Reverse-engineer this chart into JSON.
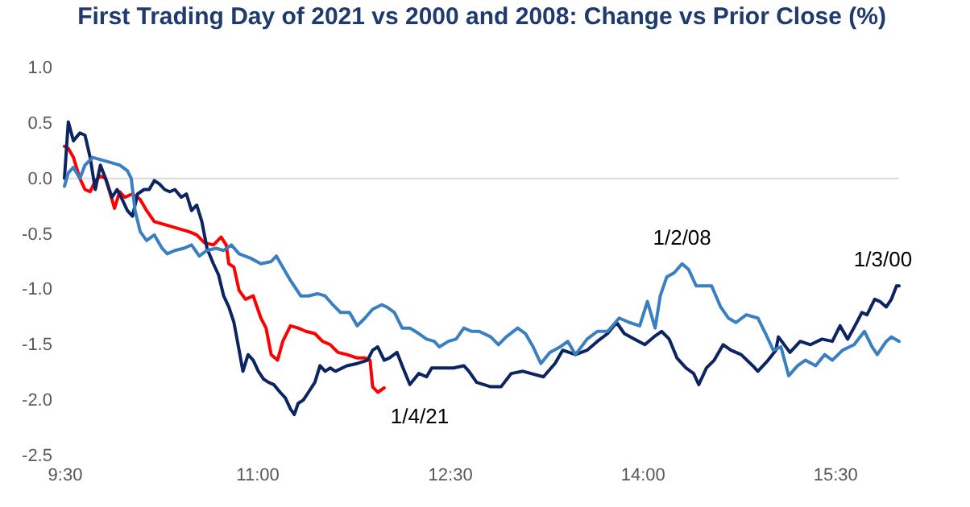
{
  "chart_data": {
    "type": "line",
    "title": "First Trading Day of 2021 vs 2000 and 2008: Change vs Prior Close (%)",
    "xlim": [
      9.5,
      16
    ],
    "xticks": [
      {
        "value": 9.5,
        "label": "9:30"
      },
      {
        "value": 11,
        "label": "11:00"
      },
      {
        "value": 12.5,
        "label": "12:30"
      },
      {
        "value": 14,
        "label": "14:00"
      },
      {
        "value": 15.5,
        "label": "15:30"
      }
    ],
    "ylim": [
      -2.5,
      1.0
    ],
    "yticks": [
      {
        "value": 1,
        "label": "1.0"
      },
      {
        "value": 0.5,
        "label": "0.5"
      },
      {
        "value": 0,
        "label": "0.0"
      },
      {
        "value": -0.5,
        "label": "-0.5"
      },
      {
        "value": -1,
        "label": "-1.0"
      },
      {
        "value": -1.5,
        "label": "-1.5"
      },
      {
        "value": -2,
        "label": "-2.0"
      },
      {
        "value": -2.5,
        "label": "-2.5"
      }
    ],
    "grid": false,
    "legend": false,
    "marker": "none",
    "line_style": "solid",
    "ref_lines": [
      {
        "axis": "y",
        "value": 0,
        "color": "#d9d9d9"
      }
    ],
    "series": [
      {
        "name": "1/4/21",
        "color": "#ff0000",
        "x": [
          9.5,
          9.53,
          9.57,
          9.62,
          9.66,
          9.7,
          9.74,
          9.78,
          9.82,
          9.87,
          9.89,
          9.93,
          9.97,
          10.03,
          10.09,
          10.14,
          10.2,
          10.26,
          10.32,
          10.41,
          10.47,
          10.53,
          10.59,
          10.66,
          10.72,
          10.76,
          10.78,
          10.82,
          10.86,
          10.91,
          10.97,
          11.03,
          11.07,
          11.11,
          11.16,
          11.2,
          11.26,
          11.32,
          11.38,
          11.45,
          11.51,
          11.57,
          11.63,
          11.7,
          11.78,
          11.84,
          11.88,
          11.9,
          11.94,
          11.99
        ],
        "values": [
          0.29,
          0.27,
          0.19,
          0,
          -0.1,
          -0.12,
          -0.02,
          0.02,
          0,
          -0.19,
          -0.27,
          -0.12,
          -0.17,
          -0.14,
          -0.19,
          -0.29,
          -0.39,
          -0.41,
          -0.43,
          -0.46,
          -0.48,
          -0.51,
          -0.58,
          -0.6,
          -0.53,
          -0.6,
          -0.77,
          -0.8,
          -1.01,
          -1.09,
          -1.06,
          -1.26,
          -1.35,
          -1.59,
          -1.64,
          -1.47,
          -1.33,
          -1.35,
          -1.38,
          -1.4,
          -1.47,
          -1.5,
          -1.57,
          -1.59,
          -1.62,
          -1.62,
          -1.64,
          -1.88,
          -1.93,
          -1.89
        ]
      },
      {
        "name": "1/3/00",
        "color": "#0c2461",
        "x": [
          9.5,
          9.53,
          9.57,
          9.62,
          9.66,
          9.7,
          9.74,
          9.78,
          9.82,
          9.87,
          9.91,
          9.95,
          9.99,
          10.03,
          10.07,
          10.12,
          10.16,
          10.2,
          10.24,
          10.28,
          10.32,
          10.36,
          10.41,
          10.45,
          10.49,
          10.53,
          10.57,
          10.61,
          10.66,
          10.7,
          10.74,
          10.78,
          10.82,
          10.86,
          10.89,
          10.93,
          10.97,
          11.01,
          11.05,
          11.09,
          11.13,
          11.18,
          11.22,
          11.26,
          11.29,
          11.32,
          11.36,
          11.4,
          11.45,
          11.49,
          11.53,
          11.57,
          11.61,
          11.7,
          11.78,
          11.86,
          11.9,
          11.94,
          11.99,
          12.03,
          12.09,
          12.13,
          12.19,
          12.26,
          12.32,
          12.36,
          12.44,
          12.53,
          12.61,
          12.65,
          12.71,
          12.82,
          12.9,
          12.98,
          13.07,
          13.23,
          13.32,
          13.38,
          13.48,
          13.57,
          13.65,
          13.73,
          13.8,
          13.86,
          13.94,
          14.02,
          14.09,
          14.15,
          14.21,
          14.27,
          14.34,
          14.4,
          14.44,
          14.5,
          14.56,
          14.63,
          14.69,
          14.77,
          14.86,
          14.9,
          14.98,
          15.04,
          15.06,
          15.15,
          15.23,
          15.31,
          15.4,
          15.48,
          15.54,
          15.6,
          15.67,
          15.71,
          15.75,
          15.81,
          15.85,
          15.9,
          15.94,
          15.98,
          16.0
        ],
        "values": [
          0,
          0.51,
          0.34,
          0.41,
          0.39,
          0.19,
          -0.1,
          0.12,
          0,
          -0.17,
          -0.1,
          -0.19,
          -0.29,
          -0.34,
          -0.14,
          -0.1,
          -0.1,
          -0.02,
          -0.05,
          -0.1,
          -0.12,
          -0.1,
          -0.17,
          -0.14,
          -0.29,
          -0.24,
          -0.39,
          -0.63,
          -0.77,
          -0.87,
          -1.06,
          -1.16,
          -1.3,
          -1.55,
          -1.74,
          -1.59,
          -1.64,
          -1.74,
          -1.81,
          -1.84,
          -1.86,
          -1.93,
          -1.98,
          -2.08,
          -2.13,
          -2.03,
          -2.0,
          -1.93,
          -1.84,
          -1.69,
          -1.74,
          -1.71,
          -1.74,
          -1.69,
          -1.67,
          -1.64,
          -1.55,
          -1.52,
          -1.64,
          -1.62,
          -1.57,
          -1.69,
          -1.86,
          -1.76,
          -1.79,
          -1.71,
          -1.71,
          -1.71,
          -1.69,
          -1.74,
          -1.84,
          -1.88,
          -1.88,
          -1.76,
          -1.74,
          -1.79,
          -1.67,
          -1.55,
          -1.59,
          -1.55,
          -1.47,
          -1.4,
          -1.3,
          -1.4,
          -1.45,
          -1.5,
          -1.43,
          -1.38,
          -1.45,
          -1.62,
          -1.71,
          -1.76,
          -1.86,
          -1.71,
          -1.64,
          -1.5,
          -1.55,
          -1.59,
          -1.69,
          -1.74,
          -1.64,
          -1.55,
          -1.43,
          -1.57,
          -1.47,
          -1.5,
          -1.45,
          -1.47,
          -1.33,
          -1.45,
          -1.3,
          -1.21,
          -1.23,
          -1.09,
          -1.11,
          -1.16,
          -1.09,
          -0.97,
          -0.97
        ]
      },
      {
        "name": "1/2/08",
        "color": "#3a7fc1",
        "x": [
          9.5,
          9.53,
          9.57,
          9.62,
          9.66,
          9.72,
          9.78,
          9.87,
          9.93,
          9.99,
          10.02,
          10.05,
          10.09,
          10.14,
          10.2,
          10.26,
          10.3,
          10.36,
          10.43,
          10.49,
          10.55,
          10.61,
          10.68,
          10.74,
          10.8,
          10.86,
          10.95,
          11.03,
          11.11,
          11.15,
          11.2,
          11.26,
          11.34,
          11.4,
          11.47,
          11.53,
          11.59,
          11.65,
          11.72,
          11.78,
          11.84,
          11.9,
          11.97,
          12.01,
          12.07,
          12.13,
          12.19,
          12.26,
          12.32,
          12.38,
          12.42,
          12.49,
          12.55,
          12.61,
          12.67,
          12.73,
          12.82,
          12.88,
          12.94,
          13.03,
          13.09,
          13.15,
          13.21,
          13.28,
          13.36,
          13.42,
          13.48,
          13.57,
          13.65,
          13.73,
          13.82,
          13.9,
          13.98,
          14.04,
          14.1,
          14.14,
          14.19,
          14.25,
          14.31,
          14.36,
          14.42,
          14.48,
          14.54,
          14.61,
          14.67,
          14.73,
          14.81,
          14.9,
          14.96,
          15.02,
          15.08,
          15.14,
          15.21,
          15.27,
          15.35,
          15.42,
          15.48,
          15.56,
          15.65,
          15.73,
          15.79,
          15.83,
          15.9,
          15.94,
          16.0
        ],
        "values": [
          -0.07,
          0.05,
          0.1,
          0,
          0.12,
          0.19,
          0.17,
          0.14,
          0.12,
          0.07,
          0,
          -0.29,
          -0.48,
          -0.56,
          -0.51,
          -0.63,
          -0.68,
          -0.65,
          -0.63,
          -0.6,
          -0.7,
          -0.65,
          -0.63,
          -0.65,
          -0.6,
          -0.68,
          -0.72,
          -0.77,
          -0.75,
          -0.7,
          -0.8,
          -0.92,
          -1.06,
          -1.06,
          -1.04,
          -1.06,
          -1.14,
          -1.21,
          -1.21,
          -1.33,
          -1.26,
          -1.18,
          -1.14,
          -1.16,
          -1.21,
          -1.35,
          -1.35,
          -1.4,
          -1.45,
          -1.47,
          -1.52,
          -1.47,
          -1.45,
          -1.35,
          -1.38,
          -1.38,
          -1.43,
          -1.5,
          -1.43,
          -1.35,
          -1.4,
          -1.52,
          -1.67,
          -1.57,
          -1.52,
          -1.47,
          -1.59,
          -1.45,
          -1.38,
          -1.38,
          -1.26,
          -1.3,
          -1.33,
          -1.11,
          -1.35,
          -1.06,
          -0.89,
          -0.85,
          -0.77,
          -0.82,
          -0.97,
          -0.97,
          -0.97,
          -1.16,
          -1.26,
          -1.3,
          -1.23,
          -1.26,
          -1.4,
          -1.55,
          -1.52,
          -1.78,
          -1.69,
          -1.64,
          -1.69,
          -1.59,
          -1.64,
          -1.55,
          -1.5,
          -1.38,
          -1.52,
          -1.59,
          -1.47,
          -1.43,
          -1.47
        ]
      }
    ]
  }
}
